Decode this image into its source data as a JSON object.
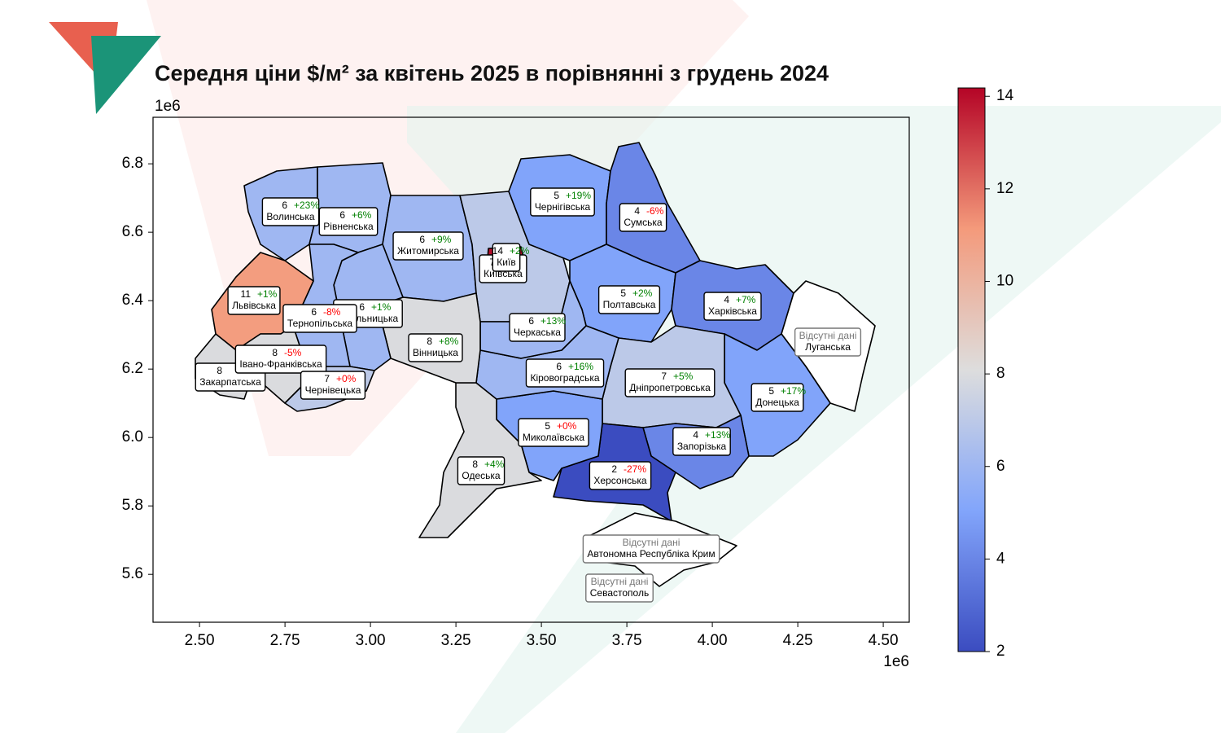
{
  "title": "Середня ціни $/м² за квітень  2025  в порівнянні з  грудень  2024",
  "map": {
    "type": "choropleth",
    "colormap": "coolwarm",
    "xlim": [
      2.364,
      4.576
    ],
    "ylim": [
      5.46,
      6.936
    ],
    "xticks": [
      {
        "value": 2.5,
        "label": "2.50"
      },
      2.75,
      {
        "value": 3.0,
        "label": "3.00"
      },
      3.25,
      {
        "value": 3.5,
        "label": "3.50"
      },
      3.75,
      {
        "value": 4.0,
        "label": "4.00"
      },
      4.25,
      {
        "value": 4.5,
        "label": "4.50"
      }
    ],
    "yticks": [
      5.6,
      5.8,
      {
        "value": 6.0,
        "label": "6.0"
      },
      6.2,
      6.4,
      6.6,
      6.8
    ],
    "x_offset_label": "1e6",
    "y_offset_label": "1e6",
    "clim": [
      2,
      14.18
    ],
    "cticks": [
      2,
      4,
      6,
      8,
      10,
      12,
      14
    ],
    "regions": [
      {
        "name": "Волинська",
        "value": 6,
        "change": "+23%",
        "change_color": "green"
      },
      {
        "name": "Рівненська",
        "value": 6,
        "change": "+6%",
        "change_color": "green"
      },
      {
        "name": "Житомирська",
        "value": 6,
        "change": "+9%",
        "change_color": "green"
      },
      {
        "name": "Київська",
        "value": 7
      },
      {
        "name": "Київ",
        "value": 14,
        "change": "+2%",
        "change_color": "green"
      },
      {
        "name": "Чернігівська",
        "value": 5,
        "change": "+19%",
        "change_color": "green"
      },
      {
        "name": "Сумська",
        "value": 4,
        "change": "-6%",
        "change_color": "red"
      },
      {
        "name": "Полтавська",
        "value": 5,
        "change": "+2%",
        "change_color": "green"
      },
      {
        "name": "Харківська",
        "value": 4,
        "change": "+7%",
        "change_color": "green"
      },
      {
        "name": "Луганська",
        "note": "Відсутні дані"
      },
      {
        "name": "Донецька",
        "value": 5,
        "change": "+17%",
        "change_color": "green"
      },
      {
        "name": "Дніпропетровська",
        "value": 7,
        "change": "+5%",
        "change_color": "green"
      },
      {
        "name": "Запорізька",
        "value": 4,
        "change": "+13%",
        "change_color": "green"
      },
      {
        "name": "Херсонська",
        "value": 2,
        "change": "-27%",
        "change_color": "red"
      },
      {
        "name": "Миколаївська",
        "value": 5,
        "change": "+0%",
        "change_color": "red"
      },
      {
        "name": "Одеська",
        "value": 8,
        "change": "+4%",
        "change_color": "green"
      },
      {
        "name": "Кіровоградська",
        "value": 6,
        "change": "+16%",
        "change_color": "green"
      },
      {
        "name": "Черкаська",
        "value": 6,
        "change": "+13%",
        "change_color": "green"
      },
      {
        "name": "Вінницька",
        "value": 8,
        "change": "+8%",
        "change_color": "green"
      },
      {
        "name": "Хмельницька",
        "value": 6,
        "change": "+1%",
        "change_color": "green"
      },
      {
        "name": "Тернопільська",
        "value": 6,
        "change": "-8%",
        "change_color": "red"
      },
      {
        "name": "Львівська",
        "value": 11,
        "change": "+1%",
        "change_color": "green"
      },
      {
        "name": "Закарпатська",
        "value": 8
      },
      {
        "name": "Івано-Франківська",
        "value": 8,
        "change": "-5%",
        "change_color": "red"
      },
      {
        "name": "Чернівецька",
        "value": 7,
        "change": "+0%",
        "change_color": "red"
      },
      {
        "name": "Автономна Республіка Крим",
        "note": "Відсутні дані"
      },
      {
        "name": "Севастополь",
        "note": "Відсутні дані"
      }
    ]
  }
}
